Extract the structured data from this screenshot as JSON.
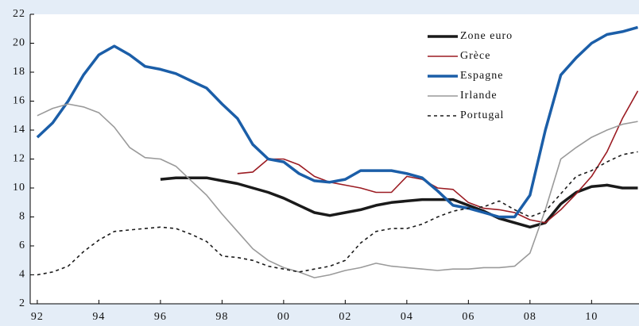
{
  "chart_data": {
    "type": "line",
    "x": [
      1992,
      1992.5,
      1993,
      1993.5,
      1994,
      1994.5,
      1995,
      1995.5,
      1996,
      1996.5,
      1997,
      1997.5,
      1998,
      1998.5,
      1999,
      1999.5,
      2000,
      2000.5,
      2001,
      2001.5,
      2002,
      2002.5,
      2003,
      2003.5,
      2004,
      2004.5,
      2005,
      2005.5,
      2006,
      2006.5,
      2007,
      2007.5,
      2008,
      2008.5,
      2009,
      2009.5,
      2010,
      2010.5,
      2011,
      2011.5
    ],
    "series": [
      {
        "name": "Zone euro",
        "color": "#1a1a1a",
        "style": "solid",
        "values": [
          null,
          null,
          null,
          null,
          null,
          null,
          null,
          null,
          10.6,
          10.7,
          10.7,
          10.7,
          10.5,
          10.3,
          10.0,
          9.7,
          9.3,
          8.8,
          8.3,
          8.1,
          8.3,
          8.5,
          8.8,
          9.0,
          9.1,
          9.2,
          9.2,
          9.2,
          8.8,
          8.4,
          7.9,
          7.6,
          7.3,
          7.6,
          8.9,
          9.7,
          10.1,
          10.2,
          10.0,
          10.0
        ]
      },
      {
        "name": "Grèce",
        "color": "#9b1b22",
        "style": "solid",
        "values": [
          null,
          null,
          null,
          null,
          null,
          null,
          null,
          null,
          null,
          null,
          null,
          null,
          null,
          11.0,
          11.1,
          12.0,
          12.0,
          11.6,
          10.8,
          10.4,
          10.2,
          10.0,
          9.7,
          9.7,
          10.8,
          10.6,
          10.0,
          9.9,
          9.0,
          8.6,
          8.5,
          8.3,
          7.8,
          7.6,
          8.5,
          9.6,
          10.8,
          12.5,
          14.8,
          16.7
        ]
      },
      {
        "name": "Espagne",
        "color": "#1b5ea8",
        "style": "solid",
        "values": [
          13.5,
          14.5,
          16.0,
          17.8,
          19.2,
          19.8,
          19.2,
          18.4,
          18.2,
          17.9,
          17.4,
          16.9,
          15.8,
          14.8,
          13.0,
          12.0,
          11.8,
          11.0,
          10.5,
          10.4,
          10.6,
          11.2,
          11.2,
          11.2,
          11.0,
          10.7,
          9.8,
          8.8,
          8.6,
          8.3,
          8.0,
          8.0,
          9.5,
          14.0,
          17.8,
          19.0,
          20.0,
          20.6,
          20.8,
          21.1
        ]
      },
      {
        "name": "Irlande",
        "color": "#9a9a9a",
        "style": "solid",
        "values": [
          15.0,
          15.5,
          15.8,
          15.6,
          15.2,
          14.2,
          12.8,
          12.1,
          12.0,
          11.5,
          10.5,
          9.5,
          8.2,
          7.0,
          5.8,
          5.0,
          4.5,
          4.2,
          3.8,
          4.0,
          4.3,
          4.5,
          4.8,
          4.6,
          4.5,
          4.4,
          4.3,
          4.4,
          4.4,
          4.5,
          4.5,
          4.6,
          5.5,
          8.5,
          12.0,
          12.8,
          13.5,
          14.0,
          14.4,
          14.6
        ]
      },
      {
        "name": "Portugal",
        "color": "#1a1a1a",
        "style": "dashed",
        "values": [
          4.0,
          4.2,
          4.6,
          5.6,
          6.4,
          7.0,
          7.1,
          7.2,
          7.3,
          7.2,
          6.8,
          6.3,
          5.3,
          5.2,
          5.0,
          4.6,
          4.4,
          4.2,
          4.4,
          4.6,
          5.0,
          6.2,
          7.0,
          7.2,
          7.2,
          7.5,
          8.0,
          8.4,
          8.6,
          8.7,
          9.1,
          8.5,
          8.0,
          8.4,
          9.6,
          10.8,
          11.2,
          11.8,
          12.3,
          12.5
        ]
      }
    ],
    "xlim": [
      1991.77,
      2011.54
    ],
    "xticks": [
      {
        "value": 1992,
        "label": "92"
      },
      {
        "value": 1994,
        "label": "94"
      },
      {
        "value": 1996,
        "label": "96"
      },
      {
        "value": 1998,
        "label": "98"
      },
      {
        "value": 2000,
        "label": "00"
      },
      {
        "value": 2002,
        "label": "02"
      },
      {
        "value": 2004,
        "label": "04"
      },
      {
        "value": 2006,
        "label": "06"
      },
      {
        "value": 2008,
        "label": "08"
      },
      {
        "value": 2010,
        "label": "10"
      }
    ],
    "ylim": [
      2,
      22
    ],
    "yticks": [
      2,
      4,
      6,
      8,
      10,
      12,
      14,
      16,
      18,
      20,
      22
    ],
    "grid": false,
    "legend": "upper right"
  }
}
